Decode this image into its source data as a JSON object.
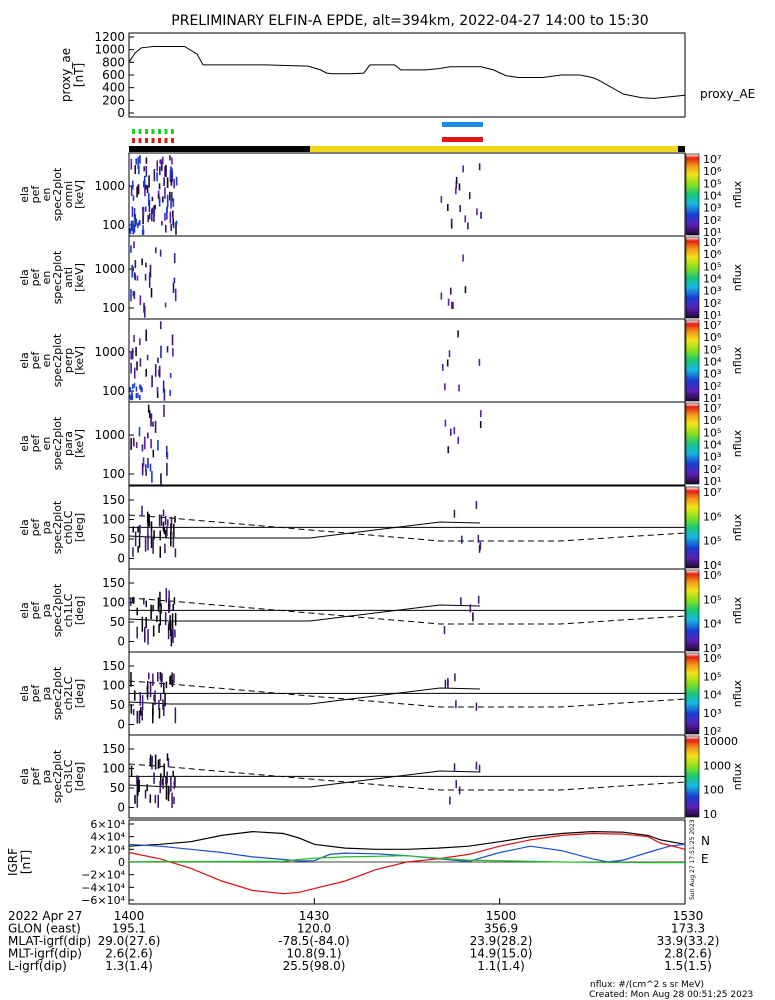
{
  "title": "PRELIMINARY ELFIN-A EPDE, alt=394km, 2022-04-27 14:00 to 15:30",
  "time_ticks": [
    "1400",
    "1430",
    "1500",
    "1530"
  ],
  "footer": {
    "row_labels": [
      "2022 Apr 27",
      "GLON (east)",
      "MLAT-igrf(dip)",
      "MLT-igrf(dip)",
      "L-igrf(dip)"
    ],
    "columns": [
      [
        "1400",
        "195.1",
        "29.0(27.6)",
        "2.6(2.6)",
        "1.3(1.4)"
      ],
      [
        "1430",
        "120.0",
        "-78.5(-84.0)",
        "10.8(9.1)",
        "25.5(98.0)"
      ],
      [
        "1500",
        "356.9",
        "23.9(28.2)",
        "14.9(15.0)",
        "1.1(1.4)"
      ],
      [
        "1530",
        "173.3",
        "33.9(33.2)",
        "2.8(2.6)",
        "1.5(1.5)"
      ]
    ],
    "units_note": "nflux: #/(cm^2 s sr MeV)",
    "created": "Created: Mon Aug 28 00:51:25 2023",
    "side_stamp": "Sun Aug 27 17:51:25 2023"
  },
  "colorbar_unit": "nflux",
  "ae_label": "proxy_AE",
  "mag_labels": [
    "N",
    "E"
  ],
  "panels": [
    {
      "lines": [
        "ela",
        "pef",
        "en",
        "spec2plot",
        "omni",
        "[keV]"
      ],
      "yticks": [
        "1000",
        "100"
      ],
      "cb_ticks": [
        "10⁷",
        "10⁶",
        "10⁵",
        "10⁴",
        "10³",
        "10²",
        "10¹"
      ]
    },
    {
      "lines": [
        "ela",
        "pef",
        "en",
        "spec2plot",
        "anti",
        "[keV]"
      ],
      "yticks": [
        "1000",
        "100"
      ],
      "cb_ticks": [
        "10⁷",
        "10⁶",
        "10⁵",
        "10⁴",
        "10³",
        "10²",
        "10¹"
      ]
    },
    {
      "lines": [
        "ela",
        "pef",
        "en",
        "spec2plot",
        "perp",
        "[keV]"
      ],
      "yticks": [
        "1000",
        "100"
      ],
      "cb_ticks": [
        "10⁷",
        "10⁶",
        "10⁵",
        "10⁴",
        "10³",
        "10²",
        "10¹"
      ]
    },
    {
      "lines": [
        "ela",
        "pef",
        "en",
        "spec2plot",
        "para",
        "[keV]"
      ],
      "yticks": [
        "1000",
        "100"
      ],
      "cb_ticks": [
        "10⁷",
        "10⁶",
        "10⁵",
        "10⁴",
        "10³",
        "10²",
        "10¹"
      ]
    },
    {
      "lines": [
        "ela",
        "pef",
        "pa",
        "spec2plot",
        "ch0LC",
        "[deg]"
      ],
      "yticks": [
        "150",
        "100",
        "50",
        "0"
      ],
      "cb_ticks": [
        "10⁷",
        "10⁶",
        "10⁵",
        "10⁴"
      ]
    },
    {
      "lines": [
        "ela",
        "pef",
        "pa",
        "spec2plot",
        "ch1LC",
        "[deg]"
      ],
      "yticks": [
        "150",
        "100",
        "50",
        "0"
      ],
      "cb_ticks": [
        "10⁶",
        "10⁵",
        "10⁴",
        "10³"
      ]
    },
    {
      "lines": [
        "ela",
        "pef",
        "pa",
        "spec2plot",
        "ch2LC",
        "[deg]"
      ],
      "yticks": [
        "150",
        "100",
        "50",
        "0"
      ],
      "cb_ticks": [
        "10⁶",
        "10⁵",
        "10⁴",
        "10³",
        "10²"
      ]
    },
    {
      "lines": [
        "ela",
        "pef",
        "pa",
        "spec2plot",
        "ch3LC",
        "[deg]"
      ],
      "yticks": [
        "150",
        "100",
        "50",
        "0"
      ],
      "cb_ticks": [
        "10000",
        "1000",
        "100",
        "10"
      ]
    }
  ],
  "chart_data": [
    {
      "type": "line",
      "ylabel": "proxy_ae [nT]",
      "ylim": [
        0,
        1200
      ],
      "yticks": [
        0,
        200,
        400,
        600,
        800,
        1000,
        1200
      ],
      "x_minutes": [
        0,
        2,
        4,
        8,
        18,
        22,
        24,
        36,
        42,
        44,
        58,
        62,
        64,
        66,
        72,
        76,
        78,
        82,
        86,
        88,
        92,
        96,
        100,
        104,
        108,
        110,
        114,
        118,
        122,
        126,
        130,
        134,
        140,
        144,
        146,
        150,
        152,
        160,
        166,
        170,
        172,
        180
      ],
      "values": [
        800,
        950,
        1030,
        1050,
        1050,
        930,
        760,
        760,
        760,
        760,
        740,
        680,
        630,
        620,
        620,
        630,
        760,
        760,
        760,
        680,
        680,
        680,
        700,
        730,
        730,
        730,
        730,
        680,
        590,
        560,
        560,
        560,
        600,
        600,
        600,
        560,
        520,
        300,
        240,
        230,
        240,
        280
      ]
    },
    {
      "type": "line",
      "ylabel": "IGRF [nT]",
      "ylim": [
        -60000,
        60000
      ],
      "yticks": [
        "6×10⁴",
        "4×10⁴",
        "2×10⁴",
        "0",
        "−2×10⁴",
        "−4×10⁴",
        "−6×10⁴"
      ],
      "series": [
        {
          "name": "",
          "color": "#000000",
          "x_minutes": [
            0,
            10,
            20,
            30,
            40,
            50,
            55,
            60,
            70,
            80,
            90,
            100,
            110,
            120,
            130,
            140,
            150,
            160,
            168,
            172,
            180
          ],
          "values": [
            25000,
            28000,
            32000,
            42000,
            48000,
            45000,
            38000,
            28000,
            22000,
            20000,
            20000,
            22000,
            25000,
            32000,
            40000,
            45000,
            48000,
            47000,
            42000,
            35000,
            28000
          ]
        },
        {
          "name": "",
          "color": "#1a4fd0",
          "x_minutes": [
            0,
            10,
            20,
            30,
            40,
            50,
            55,
            60,
            65,
            70,
            80,
            90,
            100,
            110,
            120,
            130,
            140,
            150,
            155,
            160,
            168,
            175,
            180
          ],
          "values": [
            28000,
            25000,
            20000,
            15000,
            8000,
            4000,
            1500,
            2000,
            12000,
            14000,
            13000,
            10000,
            5000,
            1000,
            15000,
            25000,
            18000,
            5000,
            0,
            3000,
            15000,
            25000,
            28000
          ]
        },
        {
          "name": "",
          "color": "#dd1111",
          "x_minutes": [
            0,
            10,
            20,
            30,
            40,
            50,
            55,
            60,
            70,
            80,
            90,
            100,
            110,
            120,
            130,
            140,
            150,
            160,
            168,
            172,
            180
          ],
          "values": [
            15000,
            5000,
            -10000,
            -30000,
            -45000,
            -50000,
            -48000,
            -42000,
            -30000,
            -12000,
            0,
            5000,
            12000,
            25000,
            35000,
            42000,
            45000,
            44000,
            40000,
            30000,
            20000
          ]
        },
        {
          "name": "",
          "color": "#22bb22",
          "x_minutes": [
            0,
            10,
            20,
            30,
            40,
            50,
            55,
            60,
            70,
            80,
            90,
            100,
            110,
            120,
            130,
            140,
            150,
            160,
            170,
            180
          ],
          "values": [
            500,
            600,
            700,
            800,
            900,
            1000,
            4000,
            6000,
            8000,
            9000,
            10000,
            6000,
            3000,
            2000,
            1000,
            0,
            -500,
            -800,
            -1000,
            -1000
          ]
        }
      ]
    }
  ]
}
